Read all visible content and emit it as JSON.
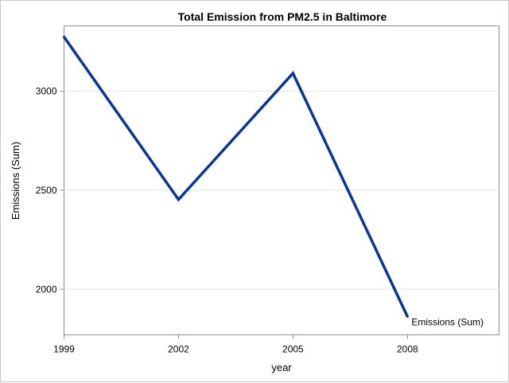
{
  "chart_data": {
    "type": "line",
    "title": "Total Emission from PM2.5 in Baltimore",
    "xlabel": "year",
    "ylabel": "Emissions (Sum)",
    "x": [
      1999,
      2002,
      2005,
      2008
    ],
    "series": [
      {
        "name": "Emissions (Sum)",
        "values": [
          3274,
          2453,
          3091,
          1862
        ],
        "color": "#0b3694"
      }
    ],
    "xlim": [
      1999,
      2010.4
    ],
    "ylim": [
      1770,
      3330
    ],
    "xticks": [
      1999,
      2002,
      2005,
      2008
    ],
    "yticks": [
      2000,
      2500,
      3000
    ],
    "xtick_labels": [
      "1999",
      "2002",
      "2005",
      "2008"
    ],
    "ytick_labels": [
      "2000",
      "2500",
      "3000"
    ],
    "grid": "horizontal",
    "legend": "inline-end-label"
  }
}
